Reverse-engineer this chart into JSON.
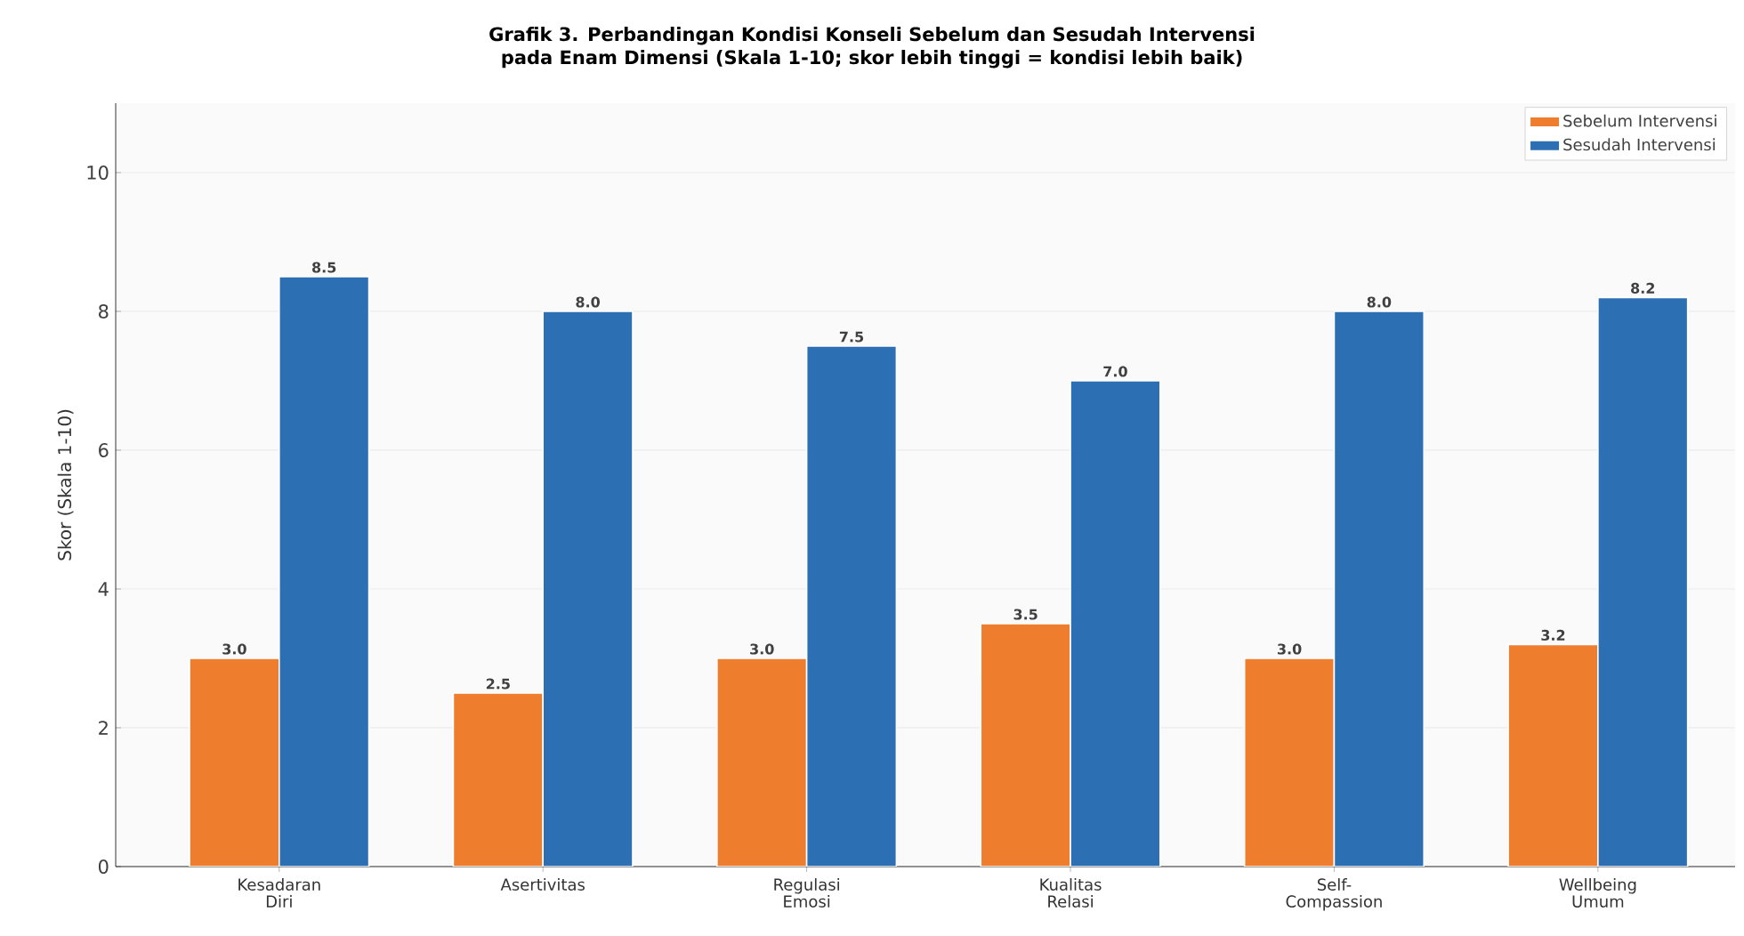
{
  "chart_data": {
    "type": "bar",
    "title": "Grafik 3. Perbandingan Kondisi Konseli Sebelum dan Sesudah Intervensi",
    "subtitle": "pada Enam Dimensi (Skala 1-10; skor lebih tinggi = kondisi lebih baik)",
    "ylabel": "Skor (Skala 1-10)",
    "categories": [
      "Kesadaran Diri",
      "Asertivitas",
      "Regulasi Emosi",
      "Kualitas Relasi",
      "Self-Compassion",
      "Wellbeing Umum"
    ],
    "series": [
      {
        "name": "Sebelum Intervensi",
        "color": "#ee7d2e",
        "values": [
          3.0,
          2.5,
          3.0,
          3.5,
          3.0,
          3.2
        ],
        "value_labels": [
          "3.0",
          "2.5",
          "3.0",
          "3.5",
          "3.0",
          "3.2"
        ]
      },
      {
        "name": "Sesudah Intervensi",
        "color": "#2c6fb2",
        "values": [
          8.5,
          8.0,
          7.5,
          7.0,
          8.0,
          8.2
        ],
        "value_labels": [
          "8.5",
          "8.0",
          "7.5",
          "7.0",
          "8.0",
          "8.2"
        ]
      }
    ],
    "ylim": [
      0,
      11
    ],
    "yticks": [
      0,
      2,
      4,
      6,
      8,
      10
    ],
    "grid": "y",
    "legend": "top right"
  }
}
